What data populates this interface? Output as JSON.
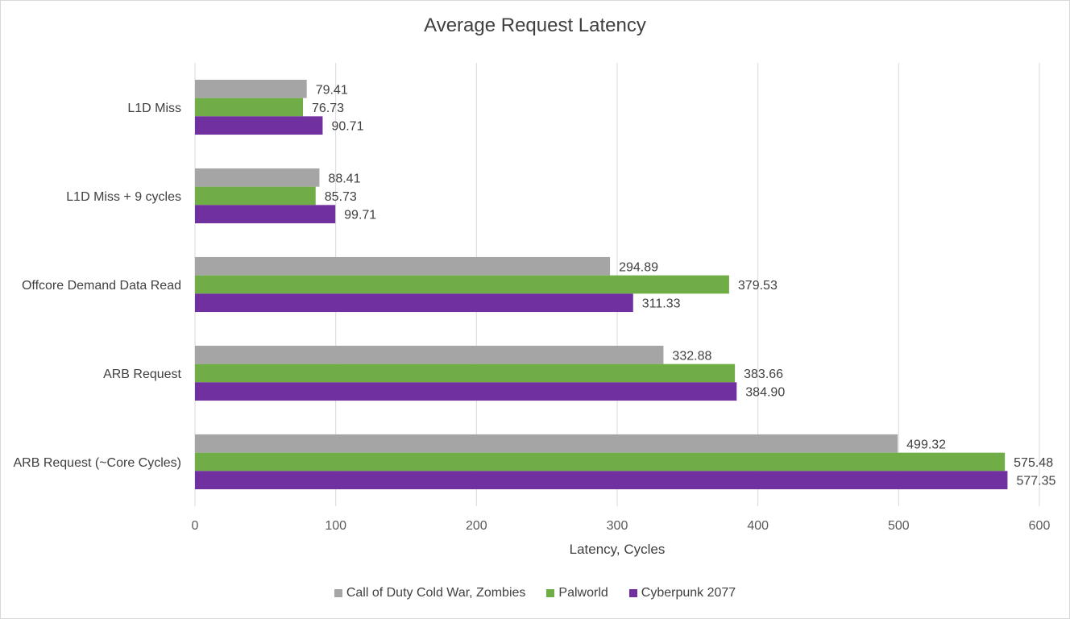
{
  "chart_data": {
    "type": "bar",
    "orientation": "horizontal",
    "title": "Average Request Latency",
    "xlabel": "Latency, Cycles",
    "ylabel": "",
    "xlim": [
      0,
      600
    ],
    "xticks": [
      0,
      100,
      200,
      300,
      400,
      500,
      600
    ],
    "grid": true,
    "legend_position": "bottom",
    "categories": [
      "L1D Miss",
      "L1D Miss + 9 cycles",
      "Offcore Demand Data Read",
      "ARB Request",
      "ARB Request (~Core Cycles)"
    ],
    "series": [
      {
        "name": "Call of Duty Cold War, Zombies",
        "color": "#a5a5a5",
        "values": [
          79.41,
          88.41,
          294.89,
          332.88,
          499.32
        ],
        "labels": [
          "79.41",
          "88.41",
          "294.89",
          "332.88",
          "499.32"
        ]
      },
      {
        "name": "Palworld",
        "color": "#70ad47",
        "values": [
          76.73,
          85.73,
          379.53,
          383.66,
          575.48
        ],
        "labels": [
          "76.73",
          "85.73",
          "379.53",
          "383.66",
          "575.48"
        ]
      },
      {
        "name": "Cyberpunk 2077",
        "color": "#7030a0",
        "values": [
          90.71,
          99.71,
          311.33,
          384.9,
          577.35
        ],
        "labels": [
          "90.71",
          "99.71",
          "311.33",
          "384.90",
          "577.35"
        ]
      }
    ]
  }
}
